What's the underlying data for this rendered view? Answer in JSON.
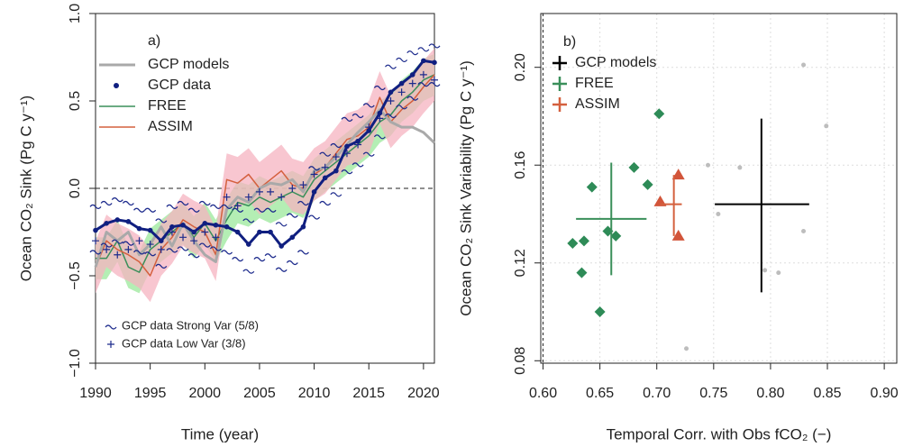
{
  "chart_data": [
    {
      "type": "line",
      "label": "a)",
      "xlabel": "Time (year)",
      "ylabel": "Ocean CO₂ Sink (Pg C y⁻¹)",
      "xlim": [
        1990,
        2021
      ],
      "ylim": [
        -1.0,
        1.0
      ],
      "xticks": [
        1990,
        1995,
        2000,
        2005,
        2010,
        2015,
        2020
      ],
      "yticks": [
        {
          "value": -1.0,
          "label": "−1.0"
        },
        {
          "value": -0.5,
          "label": "−0.5"
        },
        {
          "value": 0.0,
          "label": "0.0"
        },
        {
          "value": 0.5,
          "label": "0.5"
        },
        {
          "value": 1.0,
          "label": "1.0"
        }
      ],
      "hline": 0,
      "x": [
        1990,
        1991,
        1992,
        1993,
        1994,
        1995,
        1996,
        1997,
        1998,
        1999,
        2000,
        2001,
        2002,
        2003,
        2004,
        2005,
        2006,
        2007,
        2008,
        2009,
        2010,
        2011,
        2012,
        2013,
        2014,
        2015,
        2016,
        2017,
        2018,
        2019,
        2020,
        2021
      ],
      "series": [
        {
          "name": "FREE",
          "color": "#3a8f5a",
          "band_color": "#9be89b",
          "line_width": 1.5,
          "legend_symbol": "line",
          "values": [
            -0.4,
            -0.4,
            -0.3,
            -0.45,
            -0.48,
            -0.35,
            -0.3,
            -0.25,
            -0.2,
            -0.28,
            -0.2,
            -0.3,
            -0.18,
            -0.08,
            -0.1,
            -0.05,
            -0.08,
            -0.05,
            -0.02,
            -0.05,
            0.05,
            0.1,
            0.15,
            0.2,
            0.25,
            0.3,
            0.38,
            0.42,
            0.5,
            0.55,
            0.62,
            0.65
          ],
          "lower": [
            -0.52,
            -0.52,
            -0.42,
            -0.57,
            -0.6,
            -0.47,
            -0.42,
            -0.37,
            -0.32,
            -0.4,
            -0.32,
            -0.42,
            -0.3,
            -0.2,
            -0.22,
            -0.17,
            -0.2,
            -0.17,
            -0.14,
            -0.17,
            -0.07,
            -0.02,
            0.03,
            0.08,
            0.13,
            0.18,
            0.26,
            0.3,
            0.38,
            0.43,
            0.5,
            0.53
          ],
          "upper": [
            -0.28,
            -0.28,
            -0.18,
            -0.33,
            -0.36,
            -0.23,
            -0.18,
            -0.13,
            -0.08,
            -0.16,
            -0.08,
            -0.18,
            -0.06,
            0.04,
            0.02,
            0.07,
            0.04,
            0.07,
            0.1,
            0.07,
            0.17,
            0.22,
            0.27,
            0.32,
            0.37,
            0.42,
            0.5,
            0.54,
            0.62,
            0.67,
            0.74,
            0.77
          ]
        },
        {
          "name": "ASSIM",
          "color": "#d4603e",
          "band_color": "#f6b3c0",
          "line_width": 1.5,
          "legend_symbol": "line",
          "values": [
            -0.45,
            -0.3,
            -0.35,
            -0.38,
            -0.42,
            -0.5,
            -0.35,
            -0.28,
            -0.18,
            -0.22,
            -0.25,
            -0.38,
            0.05,
            0.03,
            0.08,
            0.0,
            0.05,
            0.1,
            0.02,
            0.0,
            0.08,
            0.12,
            0.2,
            0.28,
            0.3,
            0.35,
            0.52,
            0.38,
            0.45,
            0.5,
            0.58,
            0.65
          ],
          "lower": [
            -0.6,
            -0.45,
            -0.5,
            -0.53,
            -0.57,
            -0.65,
            -0.5,
            -0.43,
            -0.33,
            -0.37,
            -0.4,
            -0.53,
            -0.1,
            -0.12,
            -0.07,
            -0.15,
            -0.1,
            -0.05,
            -0.13,
            -0.15,
            -0.07,
            -0.03,
            0.05,
            0.13,
            0.15,
            0.2,
            0.37,
            0.23,
            0.3,
            0.35,
            0.43,
            0.5
          ],
          "upper": [
            -0.3,
            -0.15,
            -0.2,
            -0.23,
            -0.27,
            -0.35,
            -0.2,
            -0.13,
            -0.03,
            -0.07,
            -0.1,
            -0.23,
            0.2,
            0.18,
            0.23,
            0.15,
            0.2,
            0.25,
            0.17,
            0.15,
            0.23,
            0.27,
            0.35,
            0.43,
            0.45,
            0.5,
            0.67,
            0.53,
            0.6,
            0.65,
            0.73,
            0.8
          ]
        },
        {
          "name": "GCP models",
          "color": "#a9a9a9",
          "line_width": 3,
          "legend_symbol": "line",
          "values": [
            -0.45,
            -0.25,
            -0.3,
            -0.25,
            -0.38,
            -0.32,
            -0.22,
            -0.33,
            -0.2,
            -0.3,
            -0.38,
            -0.42,
            -0.12,
            -0.05,
            -0.08,
            0.0,
            0.03,
            0.02,
            0.05,
            -0.02,
            0.1,
            0.12,
            0.18,
            0.25,
            0.32,
            0.38,
            0.45,
            0.38,
            0.35,
            0.35,
            0.32,
            0.26
          ]
        },
        {
          "name": "GCP data Strong Var (5/8)",
          "color": "#1c2a8c",
          "marker": "tilde",
          "values": [
            -0.1,
            -0.08,
            -0.06,
            -0.08,
            -0.12,
            -0.12,
            -0.18,
            -0.1,
            -0.08,
            -0.12,
            -0.08,
            -0.1,
            -0.1,
            -0.12,
            -0.18,
            -0.12,
            -0.12,
            -0.2,
            -0.15,
            -0.08,
            0.12,
            0.2,
            0.25,
            0.4,
            0.42,
            0.48,
            0.58,
            0.7,
            0.74,
            0.78,
            0.8,
            0.82
          ],
          "values_low": [
            -0.36,
            -0.32,
            -0.3,
            -0.31,
            -0.36,
            -0.37,
            -0.44,
            -0.35,
            -0.34,
            -0.38,
            -0.32,
            -0.34,
            -0.36,
            -0.4,
            -0.47,
            -0.4,
            -0.38,
            -0.46,
            -0.42,
            -0.36,
            -0.16,
            -0.08,
            -0.03,
            0.1,
            0.14,
            0.2,
            0.3,
            0.42,
            0.47,
            0.52,
            0.6,
            0.6
          ]
        },
        {
          "name": "GCP data Low Var (3/8)",
          "color": "#1c2a8c",
          "marker": "plus",
          "values": [
            -0.3,
            -0.35,
            -0.38,
            -0.35,
            -0.3,
            -0.32,
            -0.35,
            -0.25,
            -0.28,
            -0.3,
            -0.25,
            -0.28,
            -0.05,
            -0.1,
            -0.05,
            -0.02,
            -0.02,
            -0.05,
            0.0,
            0.02,
            0.08,
            0.12,
            0.18,
            0.2,
            0.25,
            0.35,
            0.4,
            0.5,
            0.55,
            0.6,
            0.65,
            0.62
          ]
        },
        {
          "name": "GCP data",
          "color": "#101f80",
          "line_width": 3,
          "dots": true,
          "legend_symbol": "dot",
          "values": [
            -0.24,
            -0.2,
            -0.18,
            -0.19,
            -0.23,
            -0.24,
            -0.3,
            -0.22,
            -0.21,
            -0.25,
            -0.2,
            -0.21,
            -0.22,
            -0.25,
            -0.32,
            -0.25,
            -0.25,
            -0.33,
            -0.28,
            -0.22,
            -0.02,
            0.06,
            0.1,
            0.24,
            0.27,
            0.33,
            0.43,
            0.55,
            0.6,
            0.65,
            0.73,
            0.72
          ]
        }
      ],
      "legend_order": [
        2,
        5,
        0,
        1
      ]
    },
    {
      "type": "scatter",
      "label": "b)",
      "xlabel": "Temporal Corr. with Obs fCO₂ (−)",
      "ylabel": "Ocean CO₂ Sink Variability (Pg C y⁻¹)",
      "xlim": [
        0.598,
        0.911
      ],
      "ylim": [
        0.079,
        0.222
      ],
      "grid": true,
      "vline": 0.6,
      "xticks": [
        {
          "value": 0.6,
          "label": "0.60"
        },
        {
          "value": 0.65,
          "label": "0.65"
        },
        {
          "value": 0.7,
          "label": "0.70"
        },
        {
          "value": 0.75,
          "label": "0.75"
        },
        {
          "value": 0.8,
          "label": "0.80"
        },
        {
          "value": 0.85,
          "label": "0.85"
        },
        {
          "value": 0.9,
          "label": "0.90"
        }
      ],
      "yticks": [
        {
          "value": 0.08,
          "label": "0.08"
        },
        {
          "value": 0.12,
          "label": "0.12"
        },
        {
          "value": 0.16,
          "label": "0.16"
        },
        {
          "value": 0.2,
          "label": "0.20"
        }
      ],
      "series": [
        {
          "name": "GCP models",
          "color": "#000000",
          "point_color": "#bdbdbd",
          "marker": "circle",
          "x": [
            0.829,
            0.849,
            0.829,
            0.795,
            0.807,
            0.773,
            0.754,
            0.745,
            0.726
          ],
          "values": [
            0.201,
            0.176,
            0.133,
            0.117,
            0.116,
            0.159,
            0.14,
            0.16,
            0.085
          ],
          "cross": {
            "x": 0.792,
            "y": 0.144,
            "xmin": 0.751,
            "xmax": 0.834,
            "ymin": 0.108,
            "ymax": 0.179
          }
        },
        {
          "name": "FREE",
          "color": "#3a8f5a",
          "point_color": "#2e8b57",
          "marker": "diamond",
          "x": [
            0.626,
            0.636,
            0.634,
            0.643,
            0.65,
            0.657,
            0.664,
            0.68,
            0.692,
            0.702
          ],
          "values": [
            0.128,
            0.129,
            0.116,
            0.151,
            0.1,
            0.133,
            0.131,
            0.159,
            0.152,
            0.181
          ],
          "cross": {
            "x": 0.66,
            "y": 0.138,
            "xmin": 0.629,
            "xmax": 0.691,
            "ymin": 0.115,
            "ymax": 0.161
          }
        },
        {
          "name": "ASSIM",
          "color": "#d4603e",
          "point_color": "#d2553a",
          "marker": "triangle",
          "x": [
            0.719,
            0.703,
            0.719
          ],
          "values": [
            0.156,
            0.145,
            0.131
          ],
          "cross": {
            "x": 0.715,
            "y": 0.144,
            "xmin": 0.703,
            "xmax": 0.722,
            "ymin": 0.131,
            "ymax": 0.156
          }
        }
      ]
    }
  ]
}
